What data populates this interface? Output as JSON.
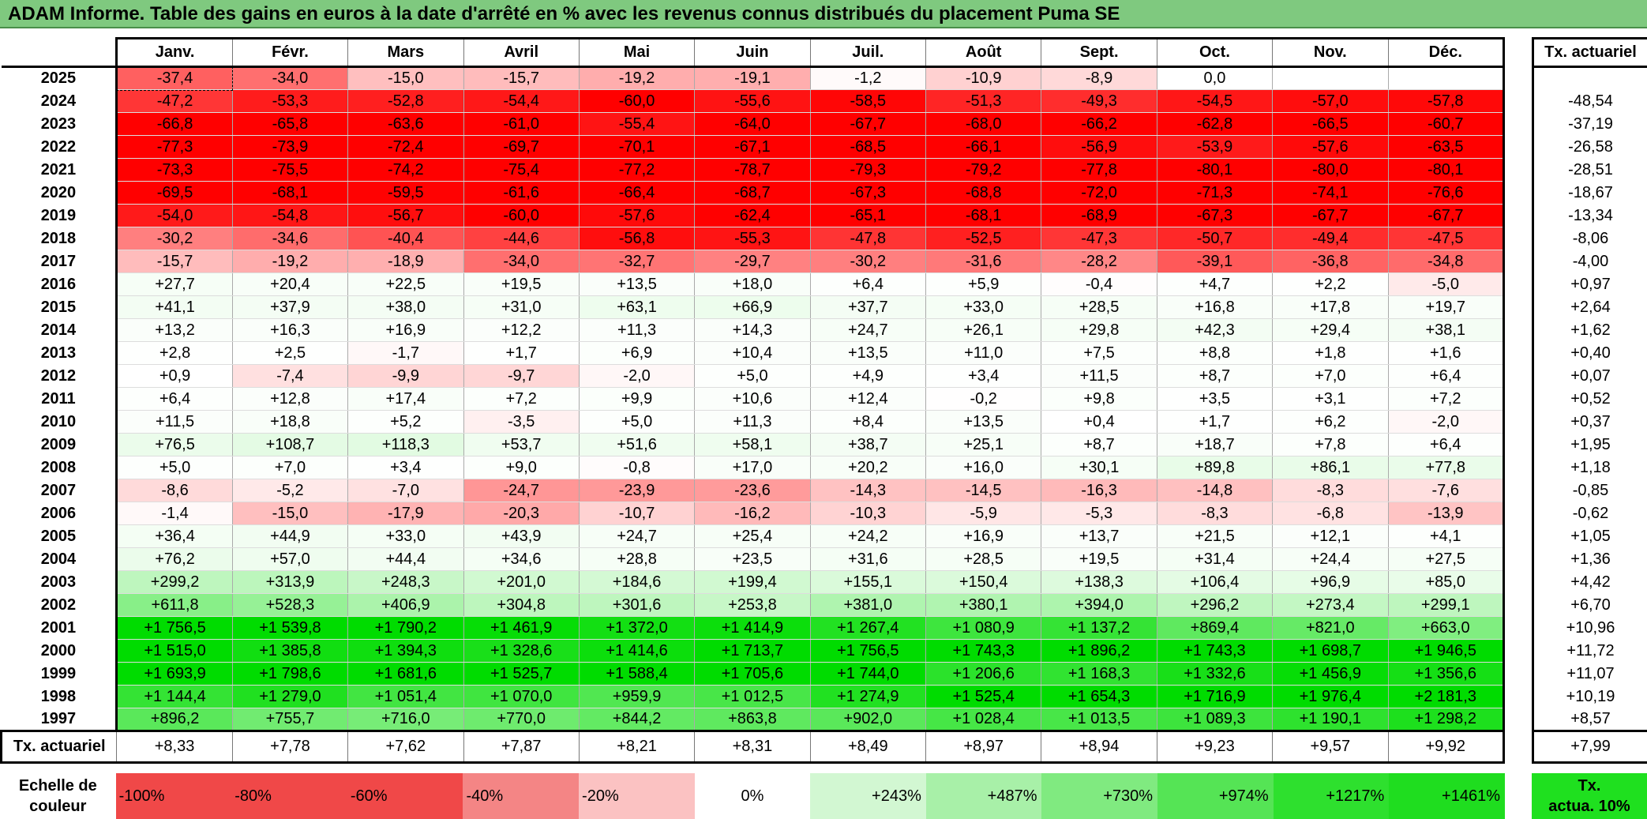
{
  "title": "ADAM Informe. Table des gains en euros à la date d'arrêté en % avec les revenus connus distribués du placement Puma SE",
  "months": [
    "Janv.",
    "Févr.",
    "Mars",
    "Avril",
    "Mai",
    "Juin",
    "Juil.",
    "Août",
    "Sept.",
    "Oct.",
    "Nov.",
    "Déc."
  ],
  "side_header": "Tx. actuariel",
  "rows": [
    {
      "year": "2025",
      "values": [
        "-37,4",
        "-34,0",
        "-15,0",
        "-15,7",
        "-19,2",
        "-19,1",
        "-1,2",
        "-10,9",
        "-8,9",
        "0,0",
        "",
        ""
      ],
      "tx": ""
    },
    {
      "year": "2024",
      "values": [
        "-47,2",
        "-53,3",
        "-52,8",
        "-54,4",
        "-60,0",
        "-55,6",
        "-58,5",
        "-51,3",
        "-49,3",
        "-54,5",
        "-57,0",
        "-57,8"
      ],
      "tx": "-48,54"
    },
    {
      "year": "2023",
      "values": [
        "-66,8",
        "-65,8",
        "-63,6",
        "-61,0",
        "-55,4",
        "-64,0",
        "-67,7",
        "-68,0",
        "-66,2",
        "-62,8",
        "-66,5",
        "-60,7"
      ],
      "tx": "-37,19"
    },
    {
      "year": "2022",
      "values": [
        "-77,3",
        "-73,9",
        "-72,4",
        "-69,7",
        "-70,1",
        "-67,1",
        "-68,5",
        "-66,1",
        "-56,9",
        "-53,9",
        "-57,6",
        "-63,5"
      ],
      "tx": "-26,58"
    },
    {
      "year": "2021",
      "values": [
        "-73,3",
        "-75,5",
        "-74,2",
        "-75,4",
        "-77,2",
        "-78,7",
        "-79,3",
        "-79,2",
        "-77,8",
        "-80,1",
        "-80,0",
        "-80,1"
      ],
      "tx": "-28,51"
    },
    {
      "year": "2020",
      "values": [
        "-69,5",
        "-68,1",
        "-59,5",
        "-61,6",
        "-66,4",
        "-68,7",
        "-67,3",
        "-68,8",
        "-72,0",
        "-71,3",
        "-74,1",
        "-76,6"
      ],
      "tx": "-18,67"
    },
    {
      "year": "2019",
      "values": [
        "-54,0",
        "-54,8",
        "-56,7",
        "-60,0",
        "-57,6",
        "-62,4",
        "-65,1",
        "-68,1",
        "-68,9",
        "-67,3",
        "-67,7",
        "-67,7"
      ],
      "tx": "-13,34"
    },
    {
      "year": "2018",
      "values": [
        "-30,2",
        "-34,6",
        "-40,4",
        "-44,6",
        "-56,8",
        "-55,3",
        "-47,8",
        "-52,5",
        "-47,3",
        "-50,7",
        "-49,4",
        "-47,5"
      ],
      "tx": "-8,06"
    },
    {
      "year": "2017",
      "values": [
        "-15,7",
        "-19,2",
        "-18,9",
        "-34,0",
        "-32,7",
        "-29,7",
        "-30,2",
        "-31,6",
        "-28,2",
        "-39,1",
        "-36,8",
        "-34,8"
      ],
      "tx": "-4,00"
    },
    {
      "year": "2016",
      "values": [
        "+27,7",
        "+20,4",
        "+22,5",
        "+19,5",
        "+13,5",
        "+18,0",
        "+6,4",
        "+5,9",
        "-0,4",
        "+4,7",
        "+2,2",
        "-5,0"
      ],
      "tx": "+0,97"
    },
    {
      "year": "2015",
      "values": [
        "+41,1",
        "+37,9",
        "+38,0",
        "+31,0",
        "+63,1",
        "+66,9",
        "+37,7",
        "+33,0",
        "+28,5",
        "+16,8",
        "+17,8",
        "+19,7"
      ],
      "tx": "+2,64"
    },
    {
      "year": "2014",
      "values": [
        "+13,2",
        "+16,3",
        "+16,9",
        "+12,2",
        "+11,3",
        "+14,3",
        "+24,7",
        "+26,1",
        "+29,8",
        "+42,3",
        "+29,4",
        "+38,1"
      ],
      "tx": "+1,62"
    },
    {
      "year": "2013",
      "values": [
        "+2,8",
        "+2,5",
        "-1,7",
        "+1,7",
        "+6,9",
        "+10,4",
        "+13,5",
        "+11,0",
        "+7,5",
        "+8,8",
        "+1,8",
        "+1,6"
      ],
      "tx": "+0,40"
    },
    {
      "year": "2012",
      "values": [
        "+0,9",
        "-7,4",
        "-9,9",
        "-9,7",
        "-2,0",
        "+5,0",
        "+4,9",
        "+3,4",
        "+11,5",
        "+8,7",
        "+7,0",
        "+6,4"
      ],
      "tx": "+0,07"
    },
    {
      "year": "2011",
      "values": [
        "+6,4",
        "+12,8",
        "+17,4",
        "+7,2",
        "+9,9",
        "+10,6",
        "+12,4",
        "-0,2",
        "+9,8",
        "+3,5",
        "+3,1",
        "+7,2"
      ],
      "tx": "+0,52"
    },
    {
      "year": "2010",
      "values": [
        "+11,5",
        "+18,8",
        "+5,2",
        "-3,5",
        "+5,0",
        "+11,3",
        "+8,4",
        "+13,5",
        "+0,4",
        "+1,7",
        "+6,2",
        "-2,0"
      ],
      "tx": "+0,37"
    },
    {
      "year": "2009",
      "values": [
        "+76,5",
        "+108,7",
        "+118,3",
        "+53,7",
        "+51,6",
        "+58,1",
        "+38,7",
        "+25,1",
        "+8,7",
        "+18,7",
        "+7,8",
        "+6,4"
      ],
      "tx": "+1,95"
    },
    {
      "year": "2008",
      "values": [
        "+5,0",
        "+7,0",
        "+3,4",
        "+9,0",
        "-0,8",
        "+17,0",
        "+20,2",
        "+16,0",
        "+30,1",
        "+89,8",
        "+86,1",
        "+77,8"
      ],
      "tx": "+1,18"
    },
    {
      "year": "2007",
      "values": [
        "-8,6",
        "-5,2",
        "-7,0",
        "-24,7",
        "-23,9",
        "-23,6",
        "-14,3",
        "-14,5",
        "-16,3",
        "-14,8",
        "-8,3",
        "-7,6"
      ],
      "tx": "-0,85"
    },
    {
      "year": "2006",
      "values": [
        "-1,4",
        "-15,0",
        "-17,9",
        "-20,3",
        "-10,7",
        "-16,2",
        "-10,3",
        "-5,9",
        "-5,3",
        "-8,3",
        "-6,8",
        "-13,9"
      ],
      "tx": "-0,62"
    },
    {
      "year": "2005",
      "values": [
        "+36,4",
        "+44,9",
        "+33,0",
        "+43,9",
        "+24,7",
        "+25,4",
        "+24,2",
        "+16,9",
        "+13,7",
        "+21,5",
        "+12,1",
        "+4,1"
      ],
      "tx": "+1,05"
    },
    {
      "year": "2004",
      "values": [
        "+76,2",
        "+57,0",
        "+44,4",
        "+34,6",
        "+28,8",
        "+23,5",
        "+31,6",
        "+28,5",
        "+19,5",
        "+31,4",
        "+24,4",
        "+27,5"
      ],
      "tx": "+1,36"
    },
    {
      "year": "2003",
      "values": [
        "+299,2",
        "+313,9",
        "+248,3",
        "+201,0",
        "+184,6",
        "+199,4",
        "+155,1",
        "+150,4",
        "+138,3",
        "+106,4",
        "+96,9",
        "+85,0"
      ],
      "tx": "+4,42"
    },
    {
      "year": "2002",
      "values": [
        "+611,8",
        "+528,3",
        "+406,9",
        "+304,8",
        "+301,6",
        "+253,8",
        "+381,0",
        "+380,1",
        "+394,0",
        "+296,2",
        "+273,4",
        "+299,1"
      ],
      "tx": "+6,70"
    },
    {
      "year": "2001",
      "values": [
        "+1 756,5",
        "+1 539,8",
        "+1 790,2",
        "+1 461,9",
        "+1 372,0",
        "+1 414,9",
        "+1 267,4",
        "+1 080,9",
        "+1 137,2",
        "+869,4",
        "+821,0",
        "+663,0"
      ],
      "tx": "+10,96"
    },
    {
      "year": "2000",
      "values": [
        "+1 515,0",
        "+1 385,8",
        "+1 394,3",
        "+1 328,6",
        "+1 414,6",
        "+1 713,7",
        "+1 756,5",
        "+1 743,3",
        "+1 896,2",
        "+1 743,3",
        "+1 698,7",
        "+1 946,5"
      ],
      "tx": "+11,72"
    },
    {
      "year": "1999",
      "values": [
        "+1 693,9",
        "+1 798,6",
        "+1 681,6",
        "+1 525,7",
        "+1 588,4",
        "+1 705,6",
        "+1 744,0",
        "+1 206,6",
        "+1 168,3",
        "+1 332,6",
        "+1 456,9",
        "+1 356,6"
      ],
      "tx": "+11,07"
    },
    {
      "year": "1998",
      "values": [
        "+1 144,4",
        "+1 279,0",
        "+1 051,4",
        "+1 070,0",
        "+959,9",
        "+1 012,5",
        "+1 274,9",
        "+1 525,4",
        "+1 654,3",
        "+1 716,9",
        "+1 976,4",
        "+2 181,3"
      ],
      "tx": "+10,19"
    },
    {
      "year": "1997",
      "values": [
        "+896,2",
        "+755,7",
        "+716,0",
        "+770,0",
        "+844,2",
        "+863,8",
        "+902,0",
        "+1 028,4",
        "+1 013,5",
        "+1 089,3",
        "+1 190,1",
        "+1 298,2"
      ],
      "tx": "+8,57"
    }
  ],
  "total_row": {
    "label": "Tx. actuariel",
    "values": [
      "+8,33",
      "+7,78",
      "+7,62",
      "+7,87",
      "+8,21",
      "+8,31",
      "+8,49",
      "+8,97",
      "+8,94",
      "+9,23",
      "+9,57",
      "+9,92"
    ],
    "tx": "+7,99"
  },
  "scale": {
    "label_line1": "Echelle de",
    "label_line2": "couleur",
    "items": [
      {
        "label": "-100%",
        "color": "#f04848"
      },
      {
        "label": "-80%",
        "color": "#f04848"
      },
      {
        "label": "-60%",
        "color": "#f04848"
      },
      {
        "label": "-40%",
        "color": "#f48585"
      },
      {
        "label": "-20%",
        "color": "#fbc2c2"
      },
      {
        "label": "0%",
        "color": "#ffffff"
      },
      {
        "label": "+243%",
        "color": "#d2f7d2"
      },
      {
        "label": "+487%",
        "color": "#a8f0a8"
      },
      {
        "label": "+730%",
        "color": "#80ea80"
      },
      {
        "label": "+974%",
        "color": "#55e455"
      },
      {
        "label": "+1217%",
        "color": "#2ee02e"
      },
      {
        "label": "+1461%",
        "color": "#1fdd1f"
      }
    ],
    "side_line1": "Tx.",
    "side_line2": "actua. 10%"
  }
}
